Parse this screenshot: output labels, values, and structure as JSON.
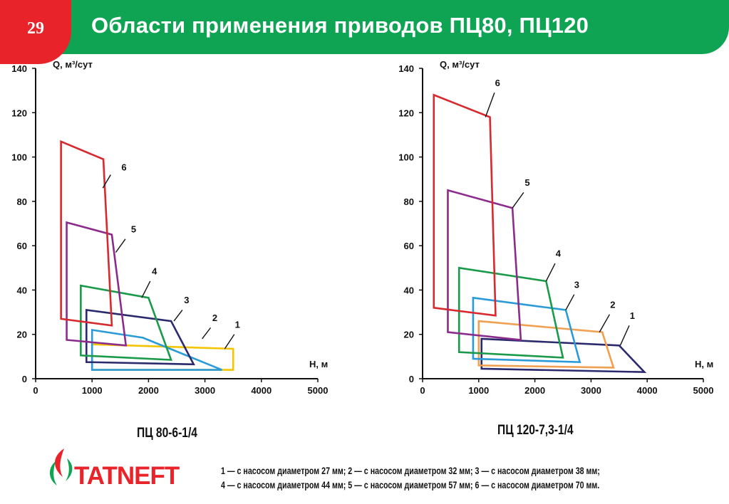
{
  "slide": {
    "number": "29",
    "title": "Области применения приводов ПЦ80, ПЦ120"
  },
  "logo": {
    "text": "TATNEFT"
  },
  "legend": {
    "line1": "1 — с насосом диаметром 27 мм; 2 — с насосом диаметром 32 мм; 3 — с насосом диаметром 38 мм;",
    "line2": "4 — с насосом диаметром 44 мм; 5 — с насосом диаметром 57 мм; 6 — с насосом диаметром 70 мм."
  },
  "chart_data": [
    {
      "type": "area",
      "subtitle": "ПЦ 80-6-1/4",
      "xlabel": "Н, м",
      "ylabel": "Q, м³/сут",
      "xlim": [
        0,
        5000
      ],
      "ylim": [
        0,
        140
      ],
      "xticks": [
        "0",
        "1000",
        "2000",
        "3000",
        "4000",
        "5000"
      ],
      "yticks": [
        "0",
        "20",
        "40",
        "60",
        "80",
        "100",
        "120",
        "140"
      ],
      "grid": false,
      "series": [
        {
          "name": "1",
          "color": "#f2c500",
          "points": [
            [
              1000,
              15.5
            ],
            [
              3500,
              13.5
            ],
            [
              3500,
              4
            ],
            [
              1000,
              4
            ]
          ],
          "label_at": [
            3530,
            23
          ],
          "leader": [
            [
              3350,
              13.5
            ],
            [
              3520,
              20
            ]
          ]
        },
        {
          "name": "2",
          "color": "#2a9bd8",
          "points": [
            [
              1000,
              22
            ],
            [
              1900,
              18.5
            ],
            [
              3300,
              4
            ],
            [
              1000,
              4
            ]
          ],
          "label_at": [
            3130,
            26
          ],
          "leader": [
            [
              2950,
              18
            ],
            [
              3100,
              23
            ]
          ]
        },
        {
          "name": "3",
          "color": "#2b2a6e",
          "points": [
            [
              900,
              31
            ],
            [
              2400,
              26
            ],
            [
              2800,
              6.5
            ],
            [
              900,
              7.5
            ]
          ],
          "label_at": [
            2630,
            34
          ],
          "leader": [
            [
              2450,
              26
            ],
            [
              2600,
              31
            ]
          ]
        },
        {
          "name": "4",
          "color": "#1a9a4a",
          "points": [
            [
              800,
              42
            ],
            [
              2000,
              36.5
            ],
            [
              2400,
              8.5
            ],
            [
              800,
              10.5
            ]
          ],
          "label_at": [
            2060,
            47
          ],
          "leader": [
            [
              1880,
              36.5
            ],
            [
              2030,
              44
            ]
          ]
        },
        {
          "name": "5",
          "color": "#8b2c8c",
          "points": [
            [
              550,
              70.5
            ],
            [
              1350,
              65
            ],
            [
              1600,
              15
            ],
            [
              550,
              17.5
            ]
          ],
          "label_at": [
            1690,
            66
          ],
          "leader": [
            [
              1420,
              57
            ],
            [
              1590,
              63
            ]
          ]
        },
        {
          "name": "6",
          "color": "#d7292e",
          "points": [
            [
              450,
              107
            ],
            [
              1200,
              99
            ],
            [
              1350,
              24
            ],
            [
              450,
              27
            ]
          ],
          "label_at": [
            1520,
            94
          ],
          "leader": [
            [
              1190,
              86
            ],
            [
              1330,
              92
            ]
          ]
        }
      ]
    },
    {
      "type": "area",
      "subtitle": "ПЦ 120-7,3-1/4",
      "xlabel": "Н, м",
      "ylabel": "Q, м³/сут",
      "xlim": [
        0,
        5000
      ],
      "ylim": [
        0,
        140
      ],
      "xticks": [
        "0",
        "1000",
        "2000",
        "3000",
        "4000",
        "5000"
      ],
      "yticks": [
        "0",
        "20",
        "40",
        "60",
        "80",
        "100",
        "120",
        "140"
      ],
      "grid": false,
      "series": [
        {
          "name": "1",
          "color": "#2b2a6e",
          "points": [
            [
              1050,
              18
            ],
            [
              3500,
              15
            ],
            [
              3950,
              3
            ],
            [
              1050,
              4.5
            ]
          ],
          "label_at": [
            3690,
            27
          ],
          "leader": [
            [
              3520,
              15
            ],
            [
              3680,
              24
            ]
          ]
        },
        {
          "name": "2",
          "color": "#f0a050",
          "points": [
            [
              1000,
              26
            ],
            [
              3200,
              21
            ],
            [
              3400,
              5
            ],
            [
              1000,
              6
            ]
          ],
          "label_at": [
            3340,
            32
          ],
          "leader": [
            [
              3150,
              21
            ],
            [
              3330,
              29
            ]
          ]
        },
        {
          "name": "3",
          "color": "#2a9bd8",
          "points": [
            [
              900,
              36.5
            ],
            [
              2550,
              31
            ],
            [
              2800,
              7.5
            ],
            [
              900,
              9
            ]
          ],
          "label_at": [
            2700,
            41
          ],
          "leader": [
            [
              2550,
              31
            ],
            [
              2700,
              38
            ]
          ]
        },
        {
          "name": "4",
          "color": "#1a9a4a",
          "points": [
            [
              650,
              50
            ],
            [
              2200,
              44
            ],
            [
              2500,
              9.5
            ],
            [
              650,
              12
            ]
          ],
          "label_at": [
            2370,
            55
          ],
          "leader": [
            [
              2200,
              44
            ],
            [
              2360,
              52
            ]
          ]
        },
        {
          "name": "5",
          "color": "#8b2c8c",
          "points": [
            [
              450,
              85
            ],
            [
              1600,
              77
            ],
            [
              1750,
              17.5
            ],
            [
              450,
              21
            ]
          ],
          "label_at": [
            1820,
            87
          ],
          "leader": [
            [
              1600,
              77
            ],
            [
              1800,
              84
            ]
          ]
        },
        {
          "name": "6",
          "color": "#d7292e",
          "points": [
            [
              200,
              128
            ],
            [
              1200,
              118
            ],
            [
              1300,
              28.5
            ],
            [
              200,
              32
            ]
          ],
          "label_at": [
            1290,
            132
          ],
          "leader": [
            [
              1120,
              118
            ],
            [
              1280,
              129
            ]
          ]
        }
      ]
    }
  ]
}
